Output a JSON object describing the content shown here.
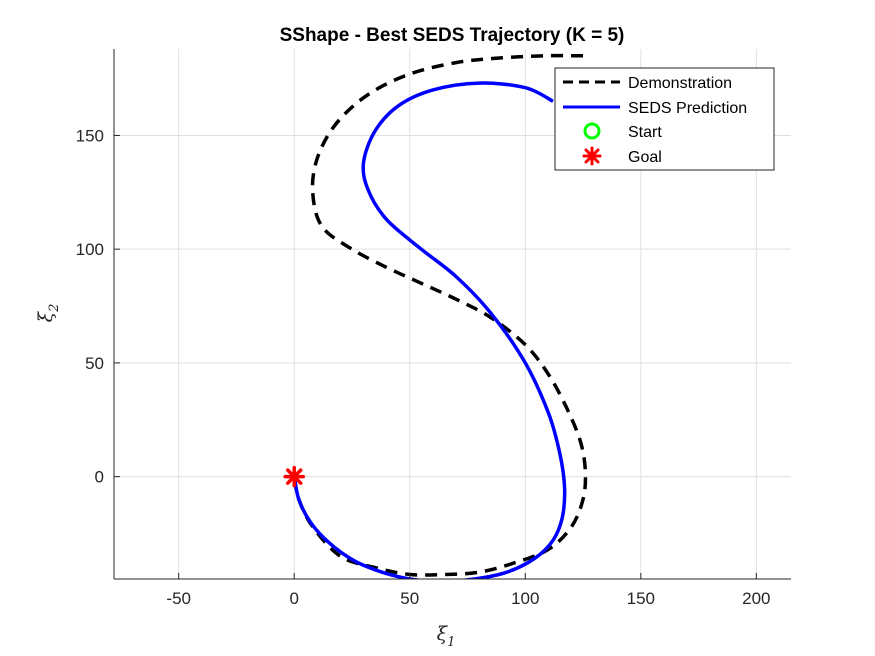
{
  "chart_data": {
    "type": "line",
    "title": "SShape - Best SEDS Trajectory (K = 5)",
    "xlabel": "ξ",
    "xlabel_subscript": "1",
    "ylabel": "ξ",
    "ylabel_subscript": "2",
    "xlim": [
      -78,
      215
    ],
    "ylim": [
      -45,
      188
    ],
    "xticks": [
      -50,
      0,
      50,
      100,
      150,
      200
    ],
    "yticks": [
      0,
      50,
      100,
      150
    ],
    "grid": true,
    "legend_position": "top-right",
    "legend": [
      "Demonstration",
      "SEDS Prediction",
      "Start",
      "Goal"
    ],
    "series": [
      {
        "name": "Demonstration",
        "style": "dashed",
        "color": "#000000",
        "x": [
          125,
          108,
          88,
          70,
          50,
          32,
          18,
          10,
          8,
          12,
          25,
          40,
          55,
          70,
          85,
          100,
          110,
          118,
          124,
          126,
          125,
          120,
          110,
          95,
          80,
          65,
          50,
          35,
          20,
          8,
          2,
          0
        ],
        "y": [
          185,
          185,
          184,
          182,
          177,
          168,
          155,
          140,
          125,
          110,
          100,
          92,
          85,
          78,
          70,
          58,
          45,
          30,
          15,
          2,
          -10,
          -22,
          -32,
          -38,
          -42,
          -43,
          -43,
          -40,
          -35,
          -22,
          -10,
          0
        ]
      },
      {
        "name": "SEDS Prediction",
        "style": "solid",
        "color": "#0000FF",
        "x": [
          112,
          100,
          80,
          60,
          45,
          35,
          30,
          32,
          40,
          55,
          70,
          85,
          100,
          110,
          115,
          117,
          116,
          112,
          104,
          92,
          78,
          63,
          50,
          38,
          26,
          15,
          7,
          2,
          0
        ],
        "y": [
          165,
          171,
          173,
          170,
          163,
          152,
          138,
          126,
          113,
          100,
          88,
          72,
          50,
          28,
          10,
          -5,
          -18,
          -28,
          -36,
          -42,
          -45,
          -46,
          -45,
          -42,
          -37,
          -29,
          -20,
          -10,
          0
        ]
      }
    ],
    "markers": [
      {
        "name": "Start",
        "x": 125,
        "y": 185,
        "symbol": "circle",
        "color": "#00FF00"
      },
      {
        "name": "Goal",
        "x": 0,
        "y": 0,
        "symbol": "asterisk",
        "color": "#FF0000"
      }
    ]
  }
}
